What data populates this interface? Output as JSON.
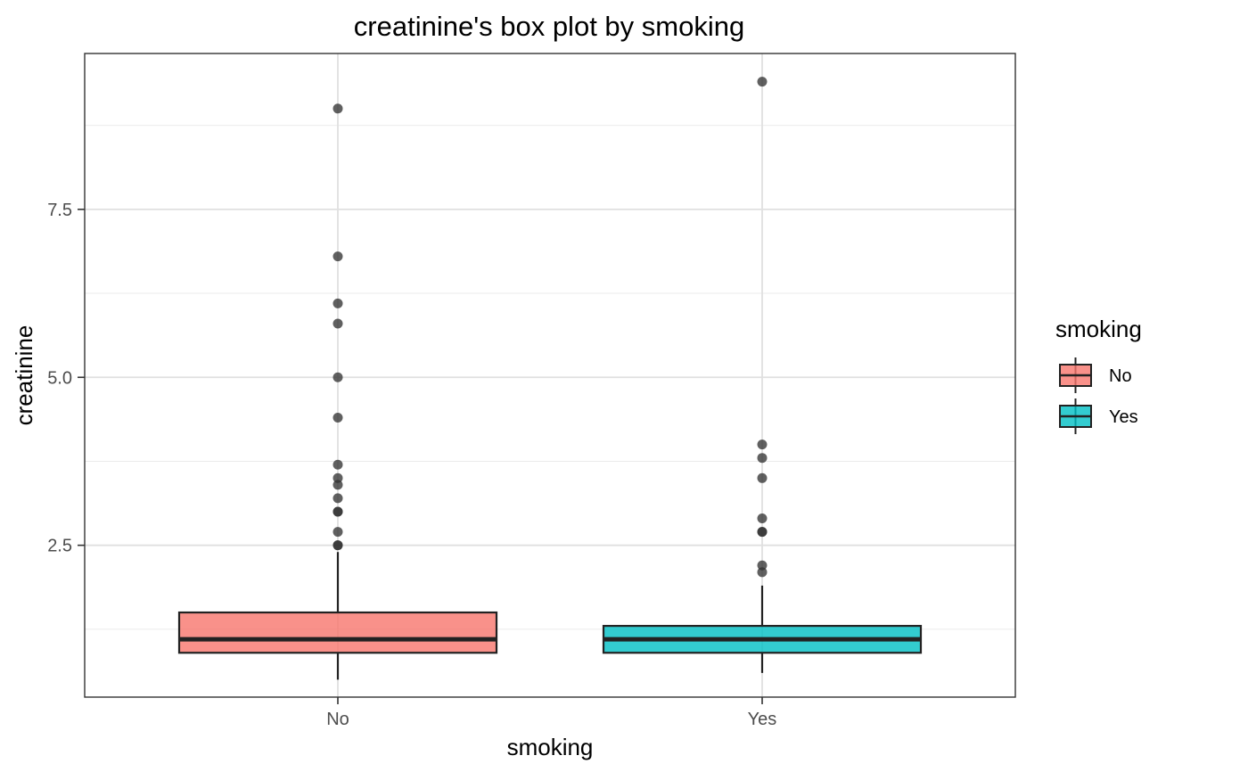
{
  "chart_data": {
    "type": "box",
    "title": "creatinine's box plot by smoking",
    "xlabel": "smoking",
    "ylabel": "creatinine",
    "categories": [
      "No",
      "Yes"
    ],
    "ylim": [
      0.24,
      9.82
    ],
    "yticks": [
      2.5,
      5.0,
      7.5
    ],
    "ytick_labels": [
      "2.5",
      "5.0",
      "7.5"
    ],
    "grid": true,
    "legend": {
      "title": "smoking",
      "placement": "right",
      "entries": [
        {
          "label": "No",
          "color": "#f8766d"
        },
        {
          "label": "Yes",
          "color": "#00bfc4"
        }
      ]
    },
    "series": [
      {
        "name": "No",
        "color": "#f8766d",
        "whisker_low": 0.5,
        "q1": 0.9,
        "median": 1.1,
        "q3": 1.5,
        "whisker_high": 2.4,
        "outliers": [
          2.5,
          2.5,
          2.7,
          3.0,
          3.0,
          3.2,
          3.4,
          3.5,
          3.7,
          4.4,
          5.0,
          5.8,
          6.1,
          6.8,
          9.0
        ]
      },
      {
        "name": "Yes",
        "color": "#00bfc4",
        "whisker_low": 0.6,
        "q1": 0.9,
        "median": 1.1,
        "q3": 1.3,
        "whisker_high": 1.9,
        "outliers": [
          2.1,
          2.2,
          2.7,
          2.7,
          2.9,
          3.5,
          3.8,
          4.0,
          9.4
        ]
      }
    ]
  }
}
